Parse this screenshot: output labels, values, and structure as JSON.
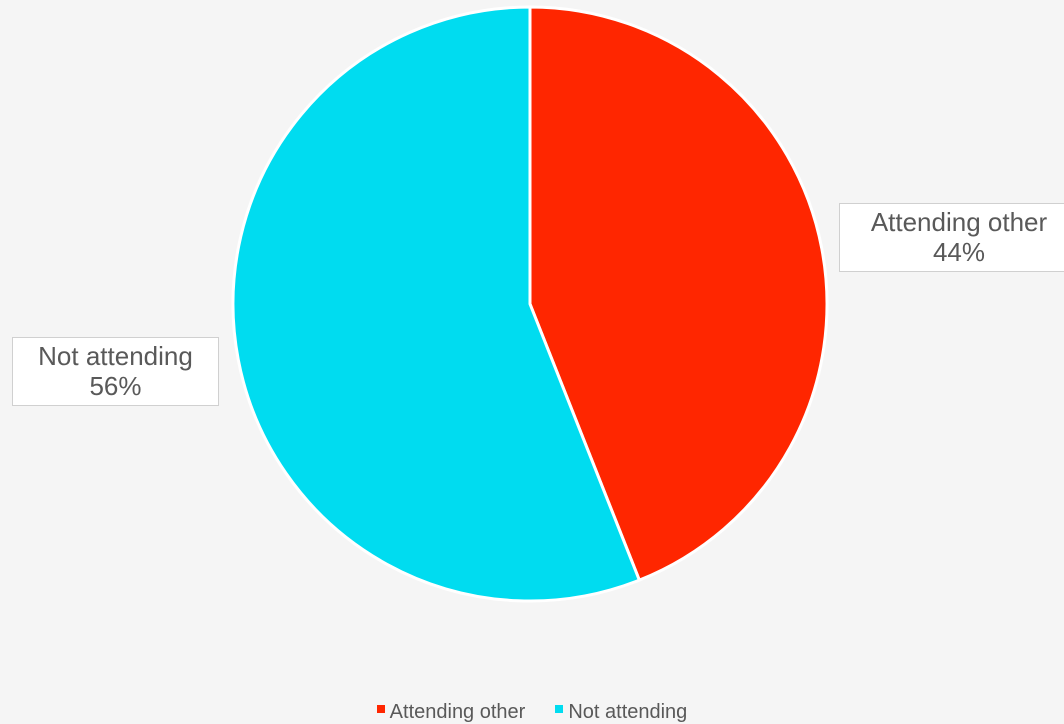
{
  "chart_data": {
    "type": "pie",
    "title": "",
    "categories": [
      "Attending other",
      "Not attending"
    ],
    "values": [
      44,
      56
    ],
    "unit": "%",
    "colors": [
      "#ff2600",
      "#00dcf0"
    ],
    "slice_border_color": "#ffffff",
    "data_labels": [
      {
        "category": "Attending other",
        "value_text": "44%"
      },
      {
        "category": "Not attending",
        "value_text": "56%"
      }
    ],
    "legend": {
      "position": "bottom",
      "entries": [
        "Attending other",
        "Not attending"
      ]
    }
  }
}
